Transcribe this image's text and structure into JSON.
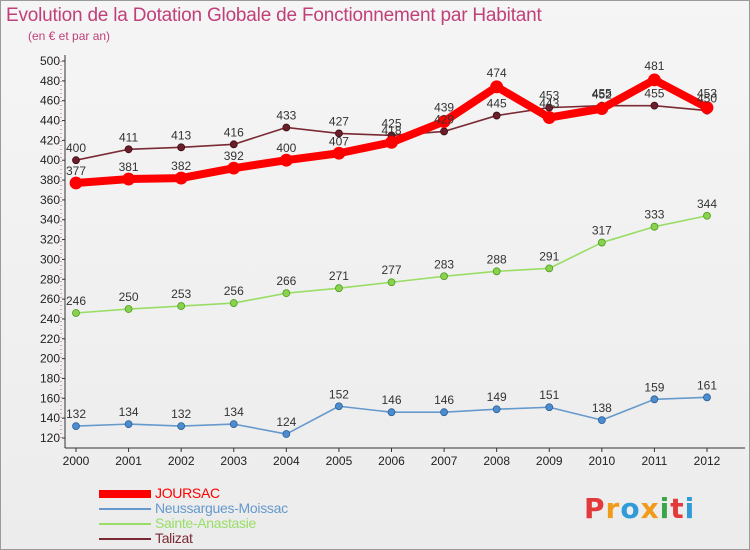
{
  "title": "Evolution de la Dotation Globale de Fonctionnement par Habitant",
  "subtitle": "(en € et par an)",
  "chart_data": {
    "type": "line",
    "categories": [
      "2000",
      "2001",
      "2002",
      "2003",
      "2004",
      "2005",
      "2006",
      "2007",
      "2008",
      "2009",
      "2010",
      "2011",
      "2012"
    ],
    "ylim": [
      120,
      500
    ],
    "yticks": [
      120,
      140,
      160,
      180,
      200,
      220,
      240,
      260,
      280,
      300,
      320,
      340,
      360,
      380,
      400,
      420,
      440,
      460,
      480,
      500
    ],
    "grid": false,
    "legend_position": "bottom-left",
    "series": [
      {
        "name": "JOURSAC",
        "color": "#ff0000",
        "values": [
          377,
          381,
          382,
          392,
          400,
          407,
          418,
          439,
          474,
          443,
          452,
          481,
          453
        ]
      },
      {
        "name": "Neussargues-Moissac",
        "color": "#6699cc",
        "values": [
          132,
          134,
          132,
          134,
          124,
          152,
          146,
          146,
          149,
          151,
          138,
          159,
          161
        ]
      },
      {
        "name": "Sainte-Anastasie",
        "color": "#99dd66",
        "values": [
          246,
          250,
          253,
          256,
          266,
          271,
          277,
          283,
          288,
          291,
          317,
          333,
          344
        ]
      },
      {
        "name": "Talizat",
        "color": "#7a2a34",
        "values": [
          400,
          411,
          413,
          416,
          433,
          427,
          425,
          429,
          445,
          453,
          455,
          455,
          450
        ]
      }
    ],
    "value_labels": {
      "JOURSAC": [
        "377",
        "381",
        "382",
        "392",
        "400",
        "407",
        "418",
        "439",
        "474",
        "443",
        "452",
        "481",
        "453"
      ],
      "Neussargues-Moissac": [
        "132",
        "134",
        "132",
        "134",
        "124",
        "152",
        "146",
        "146",
        "149",
        "151",
        "138",
        "159",
        "161"
      ],
      "Sainte-Anastasie": [
        "246",
        "250",
        "253",
        "256",
        "266",
        "271",
        "277",
        "283",
        "288",
        "291",
        "317",
        "333",
        "344"
      ],
      "Talizat": [
        "400",
        "411",
        "413",
        "416",
        "433",
        "427",
        "425",
        "429",
        "445",
        "453",
        "455",
        "455",
        "450"
      ]
    }
  },
  "logo": {
    "text": "Proxiti",
    "colors": [
      "#e23a3a",
      "#f29a1a",
      "#2f9bd7",
      "#f29a1a",
      "#3aa54a",
      "#e23a3a",
      "#2f9bd7"
    ]
  }
}
